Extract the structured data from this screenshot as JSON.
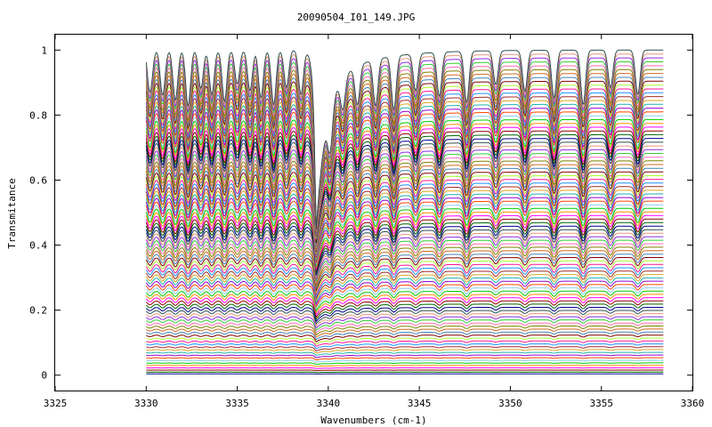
{
  "chart_data": {
    "type": "line",
    "title": "20090504_I01_149.JPG",
    "xlabel": "Wavenumbers (cm-1)",
    "ylabel": "Transmitance",
    "xlim": [
      3325,
      3360
    ],
    "ylim": [
      -0.05,
      1.05
    ],
    "x_ticks": [
      3325,
      3330,
      3335,
      3340,
      3345,
      3350,
      3355,
      3360
    ],
    "y_ticks": [
      0,
      0.2,
      0.4,
      0.6,
      0.8,
      1
    ],
    "x_tick_labels": [
      "3325",
      "3330",
      "3335",
      "3340",
      "3345",
      "3350",
      "3355",
      "3360"
    ],
    "y_tick_labels": [
      "0",
      "0.2",
      "0.4",
      "0.6",
      "0.8",
      "1"
    ],
    "x_data_range": [
      3330.0,
      3358.4
    ],
    "grid": false,
    "legend": "none",
    "series_count": 96,
    "series_baseline_range": [
      0.0,
      1.0
    ],
    "strong_absorption_band_cm1": 3339.3,
    "absorption_lines_cm1": [
      3330.2,
      3330.9,
      3331.6,
      3332.3,
      3333.0,
      3333.6,
      3334.3,
      3335.0,
      3335.7,
      3336.3,
      3337.0,
      3337.7,
      3338.5,
      3340.1,
      3340.8,
      3341.6,
      3342.6,
      3343.6,
      3344.8,
      3346.1,
      3347.6,
      3349.2,
      3350.8,
      3352.4,
      3354.0,
      3355.5,
      3357.0
    ],
    "colors": [
      "#00008b",
      "#006400",
      "#8b0000",
      "#ff00ff",
      "#ff8c00",
      "#00cc00",
      "#87ceeb",
      "#ff4500",
      "#9400d3",
      "#20b2aa",
      "#daa520",
      "#a52a2a",
      "#1e90ff",
      "#ff1493",
      "#adff2f",
      "#800000",
      "#4682b4",
      "#d2691e",
      "#808000",
      "#ff69b4",
      "#32cd32",
      "#8a2be2",
      "#e9967a",
      "#2f4f4f"
    ],
    "axis_color": "#000000",
    "background": "#ffffff"
  }
}
